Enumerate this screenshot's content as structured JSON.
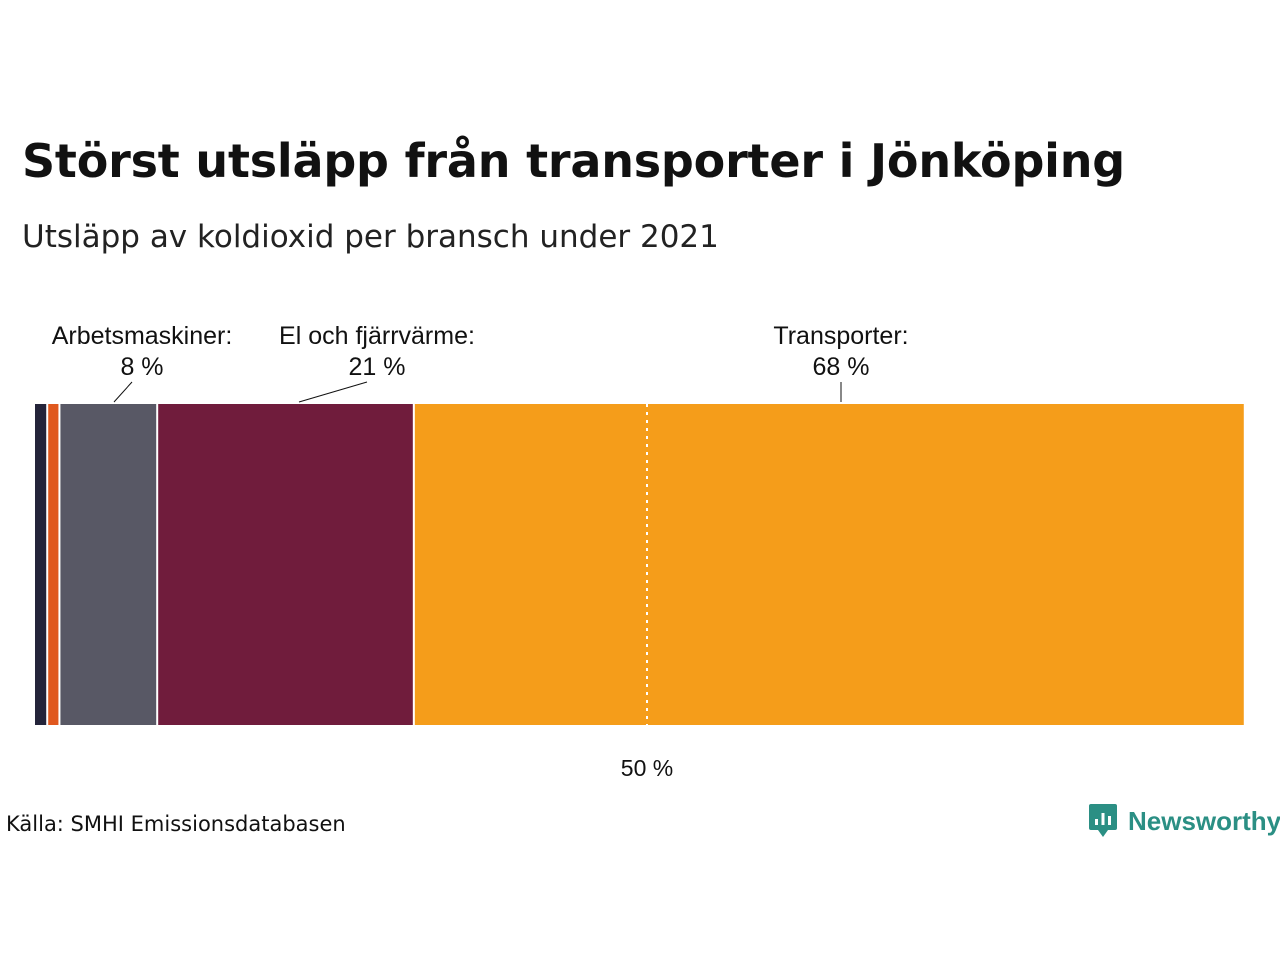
{
  "title": "Störst utsläpp från transporter i Jönköping",
  "subtitle": "Utsläpp av koldioxid per bransch under 2021",
  "source": "Källa: SMHI Emissionsdatabasen",
  "brand": {
    "name": "Newsworthy",
    "icon": "newsworthy-logo-icon",
    "color": "#2b8f84"
  },
  "chart_data": {
    "type": "bar",
    "orientation": "horizontal-stacked",
    "unit": "%",
    "xlim": [
      0,
      100
    ],
    "reference_line": {
      "value": 50,
      "label": "50 %"
    },
    "series": [
      {
        "name": "",
        "value": 1,
        "color": "#24243a",
        "label": "",
        "value_label": ""
      },
      {
        "name": "",
        "value": 1,
        "color": "#e0581e",
        "label": "",
        "value_label": ""
      },
      {
        "name": "Arbetsmaskiner",
        "value": 8,
        "color": "#585865",
        "label": "Arbetsmaskiner:",
        "value_label": "8 %"
      },
      {
        "name": "El och fjärrvärme",
        "value": 21,
        "color": "#701c3c",
        "label": "El och fjärrvärme:",
        "value_label": "21 %"
      },
      {
        "name": "Transporter",
        "value": 68,
        "color": "#f59d1a",
        "label": "Transporter:",
        "value_label": "68 %"
      }
    ]
  }
}
